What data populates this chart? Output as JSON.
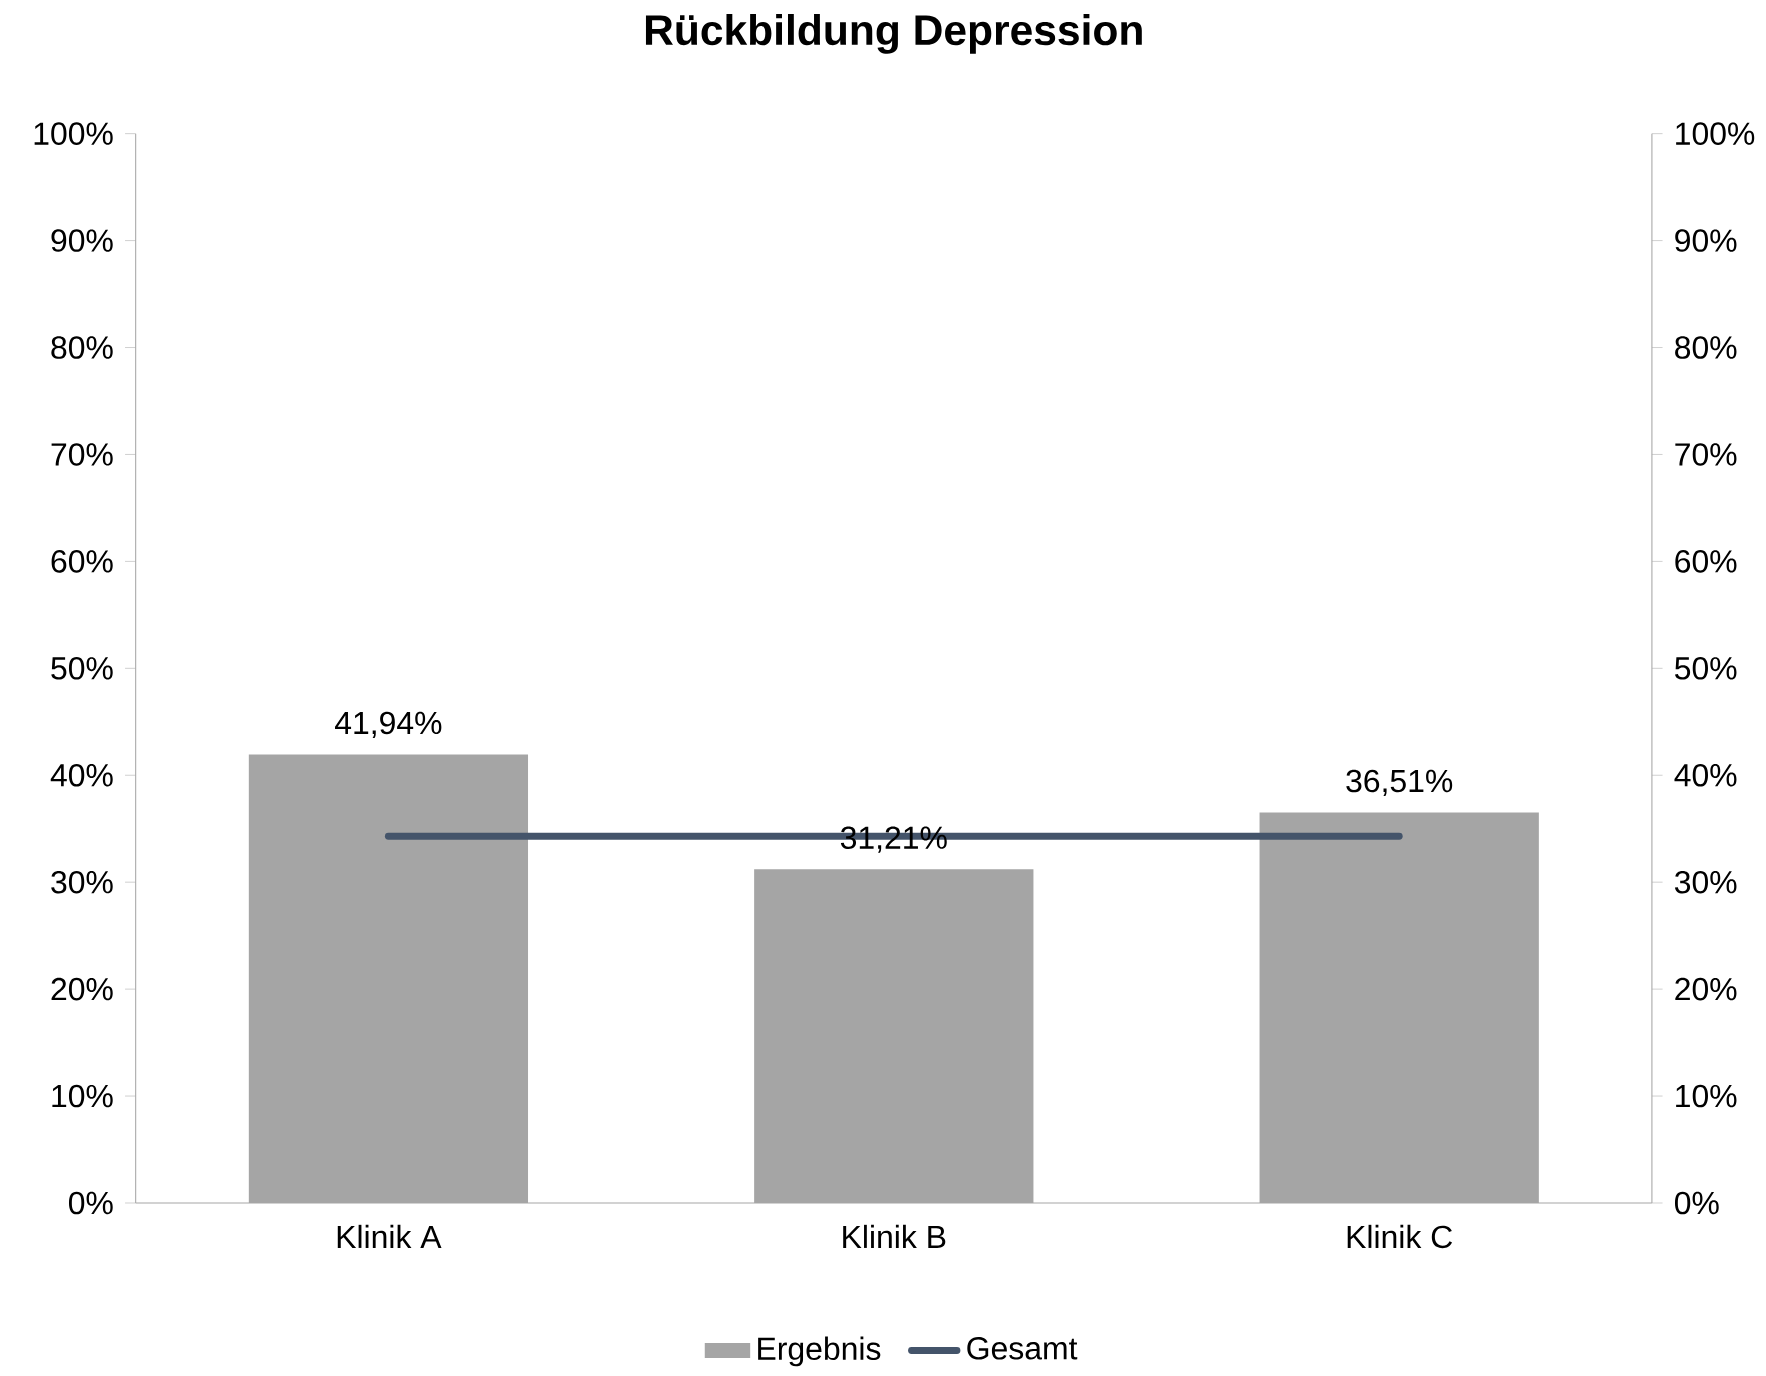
{
  "chart_data": {
    "type": "bar",
    "title": "Rückbildung Depression",
    "categories": [
      "Klinik A",
      "Klinik B",
      "Klinik C"
    ],
    "series": [
      {
        "name": "Ergebnis",
        "color": "#a5a5a5",
        "values": [
          41.94,
          31.21,
          36.51
        ],
        "value_labels": [
          "41,94%",
          "31,21%",
          "36,51%"
        ]
      },
      {
        "name": "Gesamt",
        "type": "line",
        "color": "#44546a",
        "values": [
          34.3,
          34.3,
          34.3
        ],
        "marker": "none"
      }
    ],
    "ylim": [
      0,
      100
    ],
    "yticks": [
      {
        "value": 0,
        "label": "0%"
      },
      {
        "value": 10,
        "label": "10%"
      },
      {
        "value": 20,
        "label": "20%"
      },
      {
        "value": 30,
        "label": "30%"
      },
      {
        "value": 40,
        "label": "40%"
      },
      {
        "value": 50,
        "label": "50%"
      },
      {
        "value": 60,
        "label": "60%"
      },
      {
        "value": 70,
        "label": "70%"
      },
      {
        "value": 80,
        "label": "80%"
      },
      {
        "value": 90,
        "label": "90%"
      },
      {
        "value": 100,
        "label": "100%"
      }
    ],
    "y2lim": [
      0,
      100
    ],
    "y2ticks": [
      {
        "value": 0,
        "label": "0%"
      },
      {
        "value": 10,
        "label": "10%"
      },
      {
        "value": 20,
        "label": "20%"
      },
      {
        "value": 30,
        "label": "30%"
      },
      {
        "value": 40,
        "label": "40%"
      },
      {
        "value": 50,
        "label": "50%"
      },
      {
        "value": 60,
        "label": "60%"
      },
      {
        "value": 70,
        "label": "70%"
      },
      {
        "value": 80,
        "label": "80%"
      },
      {
        "value": 90,
        "label": "90%"
      },
      {
        "value": 100,
        "label": "100%"
      }
    ],
    "grid": false,
    "legend": "bottom"
  }
}
